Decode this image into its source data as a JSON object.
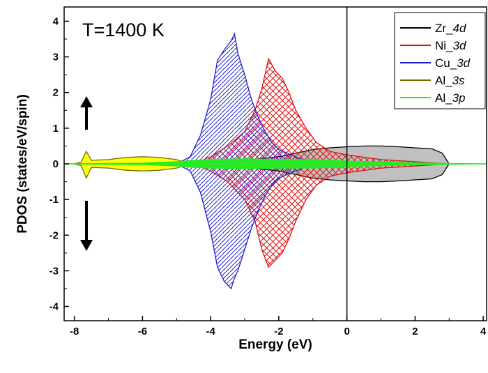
{
  "chart_data": {
    "type": "area",
    "xlabel": "Energy (eV)",
    "ylabel": "PDOS (states/eV/spin)",
    "xlim": [
      -8.3,
      4.1
    ],
    "ylim": [
      -4.4,
      4.4
    ],
    "x_ticks": [
      "-8",
      "-6",
      "-4",
      "-2",
      "0",
      "2",
      "4"
    ],
    "y_ticks": [
      "4",
      "3",
      "2",
      "1",
      "0",
      "-1",
      "-2",
      "-3",
      "-4"
    ],
    "annotation": "T=1400 K",
    "fermi_level": 0,
    "spin_arrows": [
      "up",
      "down"
    ],
    "legend_position": "top-right",
    "series": [
      {
        "name_base": "Zr_",
        "name_orbital": "4d",
        "color": "#000000",
        "fill": "#bdbdbd",
        "pattern": "solid",
        "x": [
          -4.8,
          -4.0,
          -3.0,
          -2.0,
          -1.5,
          -1.0,
          -0.5,
          0.0,
          0.5,
          1.0,
          1.5,
          2.0,
          2.5,
          2.8,
          3.0
        ],
        "up": [
          0.0,
          0.05,
          0.1,
          0.2,
          0.3,
          0.4,
          0.45,
          0.48,
          0.5,
          0.5,
          0.48,
          0.45,
          0.42,
          0.3,
          0.0
        ],
        "down": [
          0.0,
          -0.05,
          -0.1,
          -0.2,
          -0.3,
          -0.4,
          -0.45,
          -0.48,
          -0.5,
          -0.5,
          -0.48,
          -0.45,
          -0.42,
          -0.3,
          0.0
        ]
      },
      {
        "name_base": "Ni_",
        "name_orbital": "3d",
        "color": "#e01010",
        "fill": "#e01010",
        "pattern": "crosshatch",
        "x": [
          -4.5,
          -4.0,
          -3.5,
          -3.0,
          -2.7,
          -2.5,
          -2.3,
          -2.1,
          -1.9,
          -1.7,
          -1.5,
          -1.2,
          -0.9,
          -0.5,
          0.0,
          1.0,
          2.0,
          3.0
        ],
        "up": [
          0.0,
          0.2,
          0.5,
          0.9,
          1.5,
          2.1,
          2.95,
          2.6,
          2.4,
          2.0,
          1.5,
          1.0,
          0.6,
          0.35,
          0.25,
          0.12,
          0.06,
          0.0
        ],
        "down": [
          0.0,
          -0.2,
          -0.5,
          -1.0,
          -1.6,
          -2.4,
          -2.9,
          -2.7,
          -2.5,
          -2.1,
          -1.6,
          -1.0,
          -0.6,
          -0.35,
          -0.25,
          -0.12,
          -0.06,
          0.0
        ]
      },
      {
        "name_base": "Cu_",
        "name_orbital": "3d",
        "color": "#1f1fd0",
        "fill": "#1f1fd0",
        "pattern": "diagonal",
        "x": [
          -5.0,
          -4.6,
          -4.3,
          -4.0,
          -3.8,
          -3.6,
          -3.4,
          -3.3,
          -3.2,
          -3.0,
          -2.8,
          -2.6,
          -2.4,
          -2.2,
          -2.0,
          -1.5,
          -1.0
        ],
        "up": [
          0.0,
          0.2,
          0.8,
          1.8,
          2.9,
          3.2,
          3.45,
          3.65,
          3.1,
          2.5,
          1.8,
          1.3,
          0.9,
          0.6,
          0.4,
          0.2,
          0.0
        ],
        "down": [
          0.0,
          -0.2,
          -0.8,
          -1.9,
          -2.9,
          -3.3,
          -3.5,
          -3.2,
          -3.0,
          -2.4,
          -1.8,
          -1.3,
          -0.9,
          -0.6,
          -0.4,
          -0.2,
          0.0
        ]
      },
      {
        "name_base": "Al_",
        "name_orbital": "3s",
        "color": "#7a6a00",
        "fill": "#ffff00",
        "pattern": "solid",
        "x": [
          -8.0,
          -7.8,
          -7.65,
          -7.5,
          -7.0,
          -6.5,
          -6.0,
          -5.5,
          -5.0,
          -4.6
        ],
        "up": [
          0.0,
          0.05,
          0.35,
          0.1,
          0.12,
          0.18,
          0.2,
          0.18,
          0.12,
          0.0
        ],
        "down": [
          0.0,
          -0.05,
          -0.4,
          -0.1,
          -0.12,
          -0.18,
          -0.2,
          -0.18,
          -0.12,
          0.0
        ]
      },
      {
        "name_base": "Al_",
        "name_orbital": "3p",
        "color": "#22ee22",
        "fill": "#22ee22",
        "pattern": "solid",
        "x": [
          -8.3,
          -6.0,
          -5.0,
          -4.5,
          -4.0,
          -3.0,
          -2.0,
          -1.0,
          -0.5,
          0.0,
          0.5,
          1.0,
          2.0,
          3.0,
          4.1
        ],
        "up": [
          0.0,
          0.02,
          0.06,
          0.1,
          0.12,
          0.14,
          0.12,
          0.12,
          0.1,
          0.08,
          0.06,
          0.05,
          0.03,
          0.01,
          0.0
        ],
        "down": [
          0.0,
          -0.02,
          -0.06,
          -0.1,
          -0.12,
          -0.14,
          -0.12,
          -0.12,
          -0.1,
          -0.08,
          -0.06,
          -0.05,
          -0.03,
          -0.01,
          0.0
        ]
      }
    ]
  }
}
